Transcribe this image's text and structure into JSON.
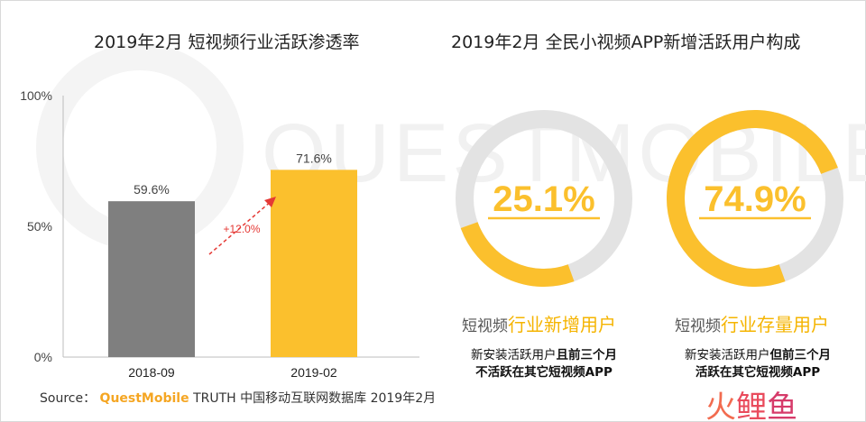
{
  "left_chart": {
    "title": "2019年2月 短视频行业活跃渗透率",
    "y_ticks": [
      "100%",
      "50%",
      "0%"
    ],
    "growth_label": "+12.0%"
  },
  "right_chart": {
    "title": "2019年2月 全民小视频APP新增活跃用户构成",
    "donuts": [
      {
        "value_label": "25.1%",
        "label_prefix": "短视频",
        "label_highlight": "行业新增用户",
        "desc_line1_pre": "新安装活跃用户",
        "desc_line1_bold": "且前三个月",
        "desc_line2": "不活跃在其它短视频APP"
      },
      {
        "value_label": "74.9%",
        "label_prefix": "短视频",
        "label_highlight": "行业存量用户",
        "desc_line1_pre": "新安装活跃用户",
        "desc_line1_bold": "但前三个月",
        "desc_line2": "活跃在其它短视频APP"
      }
    ]
  },
  "source": {
    "prefix": "Source：",
    "brand": "QuestMobile",
    "suffix": "TRUTH 中国移动互联网数据库 2019年2月"
  },
  "watermark": "QUESTMOBILE",
  "corner_logo": [
    "火",
    "鲤",
    "鱼"
  ],
  "colors": {
    "gray_bar": "#7f7f7f",
    "yellow": "#fbc02d",
    "donut_track": "#e3e3e3",
    "arrow_red": "#e53935"
  },
  "chart_data": [
    {
      "type": "bar",
      "title": "2019年2月 短视频行业活跃渗透率",
      "categories": [
        "2018-09",
        "2019-02"
      ],
      "values": [
        59.6,
        71.6
      ],
      "value_labels": [
        "59.6%",
        "71.6%"
      ],
      "ylim": [
        0,
        100
      ],
      "ylabel": "",
      "xlabel": "",
      "annotation": "+12.0%"
    },
    {
      "type": "pie",
      "title": "2019年2月 全民小视频APP新增活跃用户构成",
      "categories": [
        "短视频行业新增用户",
        "短视频行业存量用户"
      ],
      "values": [
        25.1,
        74.9
      ]
    }
  ]
}
